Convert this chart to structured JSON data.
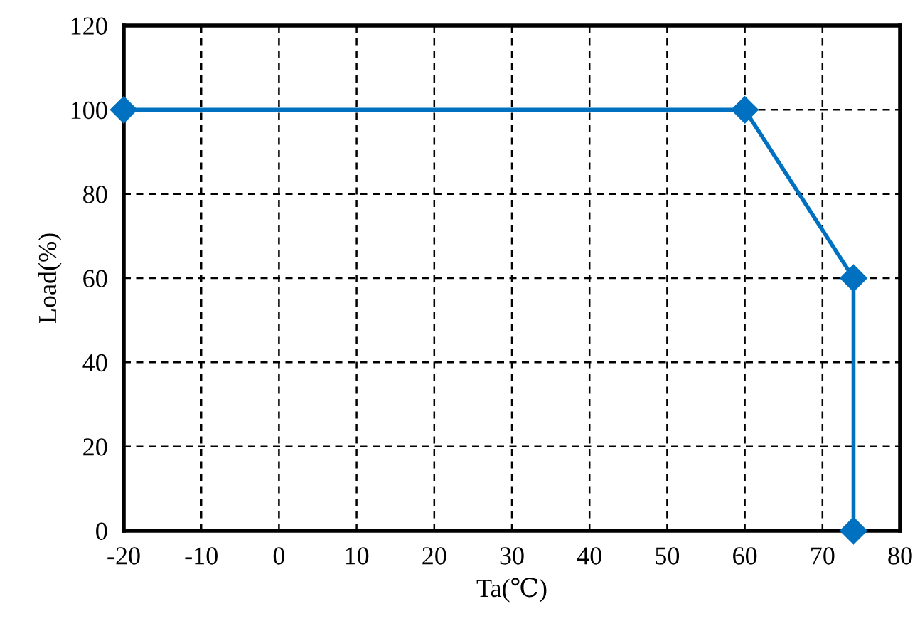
{
  "chart_data": {
    "type": "line",
    "xlabel": "Ta(℃)",
    "ylabel": "Load(%)",
    "x": [
      -20,
      60,
      74,
      74
    ],
    "series": [
      {
        "color": "#0070c0",
        "values": [
          100,
          100,
          60,
          0
        ]
      }
    ],
    "xlim": [
      -20,
      80
    ],
    "xticks": [
      -20,
      -10,
      0,
      10,
      20,
      30,
      40,
      50,
      60,
      70,
      80
    ],
    "ylim": [
      0,
      120
    ],
    "yticks": [
      0,
      20,
      40,
      60,
      80,
      100,
      120
    ],
    "grid": true,
    "marker": "diamond",
    "line_style": "solid"
  }
}
